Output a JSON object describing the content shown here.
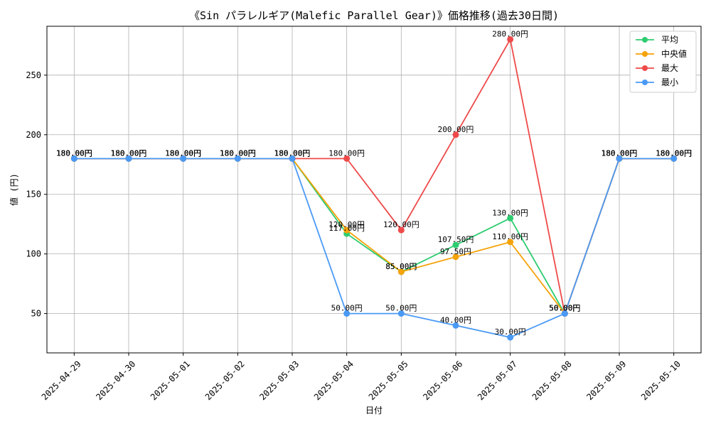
{
  "chart_data": {
    "type": "line",
    "title": "《Sin パラレルギア(Malefic Parallel Gear)》価格推移(過去30日間)",
    "xlabel": "日付",
    "ylabel": "値 (円)",
    "x": [
      "2025-04-29",
      "2025-04-30",
      "2025-05-01",
      "2025-05-02",
      "2025-05-03",
      "2025-05-04",
      "2025-05-05",
      "2025-05-06",
      "2025-05-07",
      "2025-05-08",
      "2025-05-09",
      "2025-05-10"
    ],
    "ylim": [
      17,
      291
    ],
    "yticks": [
      50,
      100,
      150,
      200,
      250
    ],
    "grid": true,
    "legend_position": "top-right",
    "series": [
      {
        "name": "平均",
        "color": "#2ecc71",
        "values": [
          180,
          180,
          180,
          180,
          180,
          117,
          85,
          107.5,
          130,
          50,
          180,
          180
        ],
        "labels": [
          "180.00円",
          "180.00円",
          "180.00円",
          "180.00円",
          "180.00円",
          "117.00円",
          "85.00円",
          "107.50円",
          "130.00円",
          "50.00円",
          "180.00円",
          "180.00円"
        ]
      },
      {
        "name": "中央値",
        "color": "#f5a30a",
        "values": [
          180,
          180,
          180,
          180,
          180,
          120,
          85,
          97.5,
          110,
          50,
          180,
          180
        ],
        "labels": [
          "180.00円",
          "180.00円",
          "180.00円",
          "180.00円",
          "180.00円",
          "120.00円",
          "85.00円",
          "97.50円",
          "110.00円",
          "50.00円",
          "180.00円",
          "180.00円"
        ]
      },
      {
        "name": "最大",
        "color": "#ef4a4a",
        "values": [
          180,
          180,
          180,
          180,
          180,
          180,
          120,
          200,
          280,
          50,
          180,
          180
        ],
        "labels": [
          "180.00円",
          "180.00円",
          "180.00円",
          "180.00円",
          "180.00円",
          "180.00円",
          "120.00円",
          "200.00円",
          "280.00円",
          "50.00円",
          "180.00円",
          "180.00円"
        ]
      },
      {
        "name": "最小",
        "color": "#4a9af5",
        "values": [
          180,
          180,
          180,
          180,
          180,
          50,
          50,
          40,
          30,
          50,
          180,
          180
        ],
        "labels": [
          "180.00円",
          "180.00円",
          "180.00円",
          "180.00円",
          "180.00円",
          "50.00円",
          "50.00円",
          "40.00円",
          "30.00円",
          "50.00円",
          "180.00円",
          "180.00円"
        ]
      }
    ]
  }
}
